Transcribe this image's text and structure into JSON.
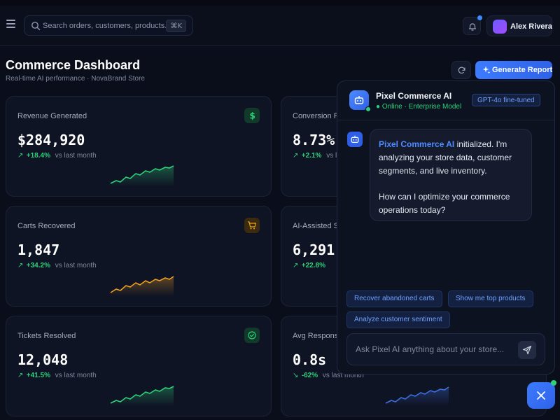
{
  "topbar": {
    "search_placeholder": "Search orders, customers, products...",
    "search_shortcut": "⌘K",
    "user_name": "Alex Rivera"
  },
  "header": {
    "title": "Commerce Dashboard",
    "subtitle": "Real-time AI performance · NovaBrand Store",
    "generate_label": "Generate Report"
  },
  "cards": [
    {
      "label": "Revenue Generated",
      "value": "$284,920",
      "delta": "+18.4%",
      "delta_note": "vs last month",
      "icon": "dollar-icon",
      "color": "#2dd27a"
    },
    {
      "label": "Conversion Ra",
      "value": "8.73%",
      "delta": "+2.1%",
      "delta_note": "vs last month",
      "icon": "",
      "color": "#2dd27a"
    },
    {
      "label": "Carts Recovered",
      "value": "1,847",
      "delta": "+34.2%",
      "delta_note": "vs last month",
      "icon": "cart-icon",
      "color": "#f0a020"
    },
    {
      "label": "AI-Assisted Sa",
      "value": "6,291",
      "delta": "+22.8%",
      "delta_note": "",
      "icon": "",
      "color": "#2dd27a"
    },
    {
      "label": "Tickets Resolved",
      "value": "12,048",
      "delta": "+41.5%",
      "delta_note": "vs last month",
      "icon": "check-circle-icon",
      "color": "#2dd27a"
    },
    {
      "label": "Avg Response",
      "value": "0.8s",
      "delta": "-62%",
      "delta_note": "vs last month",
      "icon": "",
      "color": "#3d6fe0"
    }
  ],
  "ai_panel": {
    "name": "Pixel Commerce AI",
    "status": "Online · Enterprise Model",
    "model_badge": "GPT-4o fine-tuned",
    "message_highlight": "Pixel Commerce AI",
    "message_part1": " initialized. I'm analyzing your store data, customer segments, and live inventory.",
    "message_part2": "How can I optimize your commerce operations today?",
    "chips": [
      "Recover abandoned carts",
      "Show me top products",
      "Analyze customer sentiment"
    ],
    "input_placeholder": "Ask Pixel AI anything about your store..."
  }
}
